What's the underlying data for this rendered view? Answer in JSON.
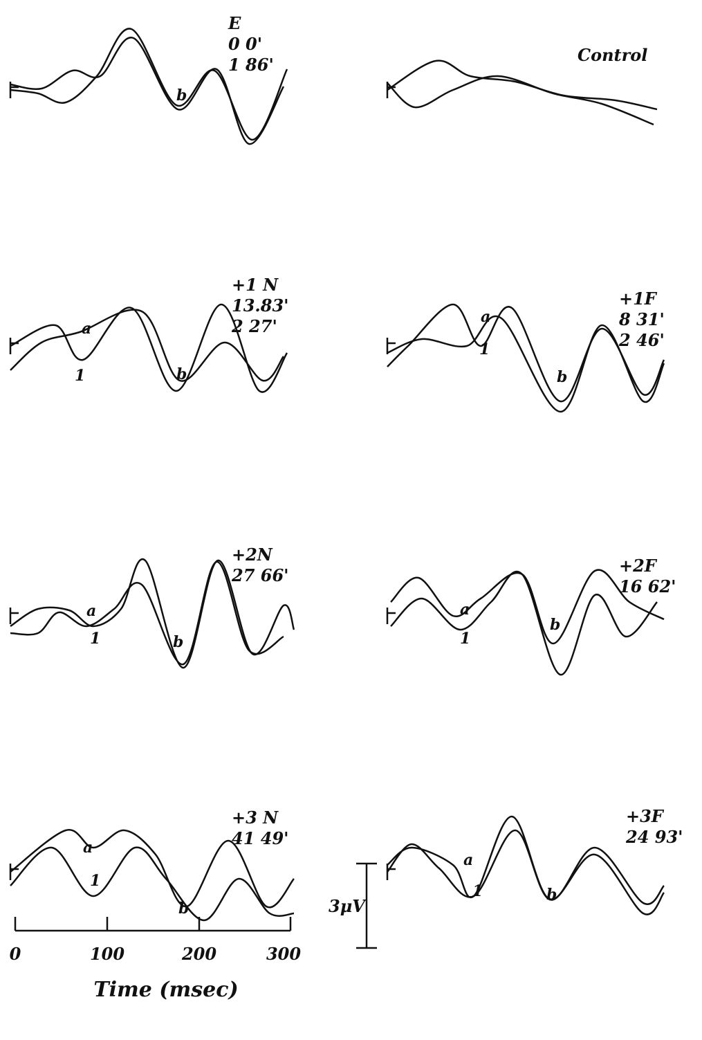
{
  "panels": [
    {
      "label": "E",
      "lines": [
        "0 0'",
        "1 86'"
      ],
      "marks": [
        "b"
      ]
    },
    {
      "label": "Control",
      "lines": [],
      "marks": []
    },
    {
      "label": "+1 N",
      "lines": [
        "13.83'",
        "2 27'"
      ],
      "marks": [
        "a",
        "1",
        "b"
      ]
    },
    {
      "label": "+1F",
      "lines": [
        "8 31'",
        "2 46'"
      ],
      "marks": [
        "a",
        "1",
        "b"
      ]
    },
    {
      "label": "+2N",
      "lines": [
        "27 66'"
      ],
      "marks": [
        "a",
        "1",
        "b"
      ]
    },
    {
      "label": "+2F",
      "lines": [
        "16 62'"
      ],
      "marks": [
        "a",
        "1",
        "b"
      ]
    },
    {
      "label": "+3 N",
      "lines": [
        "41 49'"
      ],
      "marks": [
        "a",
        "1",
        "b"
      ]
    },
    {
      "label": "+3F",
      "lines": [
        "24 93'"
      ],
      "marks": [
        "a",
        "1",
        "b"
      ]
    }
  ],
  "scale_bar": {
    "label": "3μV"
  },
  "time_axis": {
    "ticks": [
      0,
      100,
      200,
      300
    ],
    "title": "Time (msec)"
  }
}
